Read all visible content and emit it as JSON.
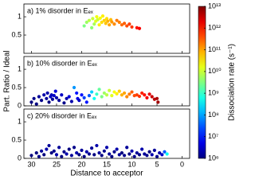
{
  "chart_data": [
    {
      "type": "scatter",
      "title": "a) 1% disorder in Eₑₓ",
      "xlim": [
        31.5,
        -1.5
      ],
      "xticks": [
        30,
        25,
        20,
        15,
        10,
        5,
        0
      ],
      "ylim": [
        0,
        1.35
      ],
      "yticks": [
        0.5,
        1
      ],
      "x": [
        19.5,
        19,
        18.5,
        18,
        17.8,
        17.5,
        17.2,
        17,
        16.8,
        16.5,
        16.3,
        16,
        15.8,
        15.5,
        15.2,
        15,
        14.8,
        14.5,
        14.2,
        14,
        13.5,
        13,
        12.5,
        12,
        11.5,
        11,
        10.5,
        10,
        9,
        8.5
      ],
      "y": [
        0.75,
        0.85,
        0.9,
        0.7,
        0.95,
        0.8,
        0.88,
        1.0,
        0.92,
        0.78,
        0.96,
        0.85,
        1.02,
        0.9,
        0.82,
        0.95,
        0.88,
        0.78,
        0.92,
        0.86,
        0.8,
        0.9,
        0.85,
        0.78,
        0.82,
        0.75,
        0.8,
        0.72,
        0.7,
        0.68
      ],
      "rate": [
        3000000000.0,
        5000000000.0,
        8000000000.0,
        4000000000.0,
        10000000000.0,
        6000000000.0,
        15000000000.0,
        20000000000.0,
        10000000000.0,
        30000000000.0,
        20000000000.0,
        40000000000.0,
        30000000000.0,
        50000000000.0,
        60000000000.0,
        40000000000.0,
        80000000000.0,
        100000000000.0,
        70000000000.0,
        120000000000.0,
        150000000000.0,
        200000000000.0,
        180000000000.0,
        250000000000.0,
        300000000000.0,
        400000000000.0,
        500000000000.0,
        600000000000.0,
        1000000000000.0,
        1500000000000.0
      ]
    },
    {
      "type": "scatter",
      "title": "b) 10% disorder in Eₑₓ",
      "ylabel": "Part. Ratio / Ideal",
      "xlim": [
        31.5,
        -1.5
      ],
      "xticks": [
        30,
        25,
        20,
        15,
        10,
        5,
        0
      ],
      "ylim": [
        0,
        1.35
      ],
      "yticks": [
        0,
        0.5,
        1
      ],
      "x": [
        30,
        29.5,
        29,
        28.5,
        28,
        27.5,
        27,
        26.8,
        26.5,
        26.2,
        26,
        25.8,
        25.5,
        25.2,
        25,
        24.5,
        24,
        23.5,
        23,
        22.5,
        22,
        21.5,
        21,
        20.8,
        20.5,
        20,
        19.5,
        19,
        18.5,
        18,
        17.5,
        17,
        16.5,
        16,
        15.5,
        15,
        14.5,
        14,
        13.5,
        13,
        12.5,
        12,
        11.5,
        11,
        10.5,
        10,
        9.5,
        9,
        8.5,
        8,
        7.5,
        7,
        6.5,
        6,
        5.5,
        5,
        4.8
      ],
      "y": [
        0.1,
        0.2,
        0.05,
        0.25,
        0.15,
        0.3,
        0.2,
        0.35,
        0.1,
        0.25,
        0.3,
        0.18,
        0.28,
        0.4,
        0.22,
        0.15,
        0.3,
        0.08,
        0.2,
        0.25,
        0.12,
        0.5,
        0.35,
        0.2,
        0.15,
        0.3,
        0.22,
        0.1,
        0.28,
        0.38,
        0.2,
        0.32,
        0.45,
        0.25,
        0.35,
        0.3,
        0.42,
        0.28,
        0.38,
        0.33,
        0.4,
        0.3,
        0.35,
        0.25,
        0.32,
        0.38,
        0.28,
        0.3,
        0.26,
        0.35,
        0.3,
        0.22,
        0.32,
        0.25,
        0.18,
        0.2,
        0.1
      ],
      "rate": [
        1000000.0,
        1200000.0,
        1000000.0,
        1500000.0,
        1200000.0,
        2000000.0,
        1500000.0,
        2000000.0,
        1000000.0,
        3000000.0,
        2500000.0,
        1500000.0,
        3000000.0,
        4000000.0,
        2000000.0,
        1500000.0,
        3000000.0,
        1200000.0,
        2000000.0,
        4000000.0,
        2000000.0,
        80000000.0,
        10000000.0,
        5000000.0,
        3000000.0,
        10000000.0,
        20000000.0,
        10000000.0,
        30000000.0,
        200000000.0,
        500000000.0,
        1000000000.0,
        2000000000.0,
        3000000000.0,
        5000000000.0,
        8000000000.0,
        10000000000.0,
        15000000000.0,
        20000000000.0,
        30000000000.0,
        50000000000.0,
        80000000000.0,
        100000000000.0,
        150000000000.0,
        200000000000.0,
        300000000000.0,
        400000000000.0,
        500000000000.0,
        600000000000.0,
        800000000000.0,
        1000000000000.0,
        1500000000000.0,
        2000000000000.0,
        3000000000000.0,
        4000000000000.0,
        5000000000000.0,
        6000000000000.0
      ]
    },
    {
      "type": "scatter",
      "title": "c) 20% disorder in Eₑₓ",
      "xlabel": "Distance to acceptor",
      "xlim": [
        31.5,
        -1.5
      ],
      "xticks": [
        30,
        25,
        20,
        15,
        10,
        5,
        0
      ],
      "ylim": [
        0,
        1.35
      ],
      "yticks": [
        0,
        0.5,
        1
      ],
      "x": [
        30,
        29,
        28.5,
        28,
        27.5,
        27,
        26.5,
        26,
        25.5,
        25,
        24.5,
        24,
        23.5,
        23,
        22.5,
        22,
        21.5,
        21,
        20.5,
        20,
        19.5,
        19,
        18.5,
        18,
        17.5,
        17,
        16.5,
        16,
        15.5,
        15,
        14.5,
        14,
        13.5,
        13,
        12.5,
        12,
        11.5,
        11,
        10.5,
        10,
        9.5,
        9,
        8.5,
        8,
        7.5,
        7,
        6.5,
        6,
        5.5,
        5,
        4.5,
        4,
        3.5,
        3
      ],
      "y": [
        0.08,
        0.15,
        0.05,
        0.2,
        0.1,
        0.25,
        0.35,
        0.15,
        0.2,
        0.1,
        0.3,
        0.05,
        0.18,
        0.12,
        0.25,
        0.08,
        0.3,
        0.15,
        0.1,
        0.22,
        0.05,
        0.18,
        0.12,
        0.28,
        0.1,
        0.35,
        0.15,
        0.08,
        0.2,
        0.3,
        0.12,
        0.05,
        0.18,
        0.25,
        0.1,
        0.15,
        0.08,
        0.3,
        0.12,
        0.2,
        0.05,
        0.15,
        0.1,
        0.25,
        0.12,
        0.08,
        0.18,
        0.1,
        0.22,
        0.05,
        0.15,
        0.1,
        0.18,
        0.12
      ],
      "rate": [
        1000000.0,
        1000000.0,
        1200000.0,
        1500000.0,
        1000000.0,
        2000000.0,
        1500000.0,
        1000000.0,
        1200000.0,
        2000000.0,
        1500000.0,
        1000000.0,
        1200000.0,
        2000000.0,
        1000000.0,
        1500000.0,
        1200000.0,
        2000000.0,
        1000000.0,
        1500000.0,
        1000000.0,
        2000000.0,
        1200000.0,
        1500000.0,
        1000000.0,
        2000000.0,
        1500000.0,
        1000000.0,
        1200000.0,
        2000000.0,
        1500000.0,
        1000000.0,
        1200000.0,
        2000000.0,
        1500000.0,
        1000000.0,
        1200000.0,
        1500000.0,
        1000000.0,
        2000000.0,
        1200000.0,
        1500000.0,
        1000000.0,
        2000000.0,
        1500000.0,
        1200000.0,
        1000000.0,
        2000000.0,
        1500000.0,
        1200000.0,
        2000000.0,
        3000000.0,
        30000000.0,
        500000000.0
      ]
    },
    {
      "type": "colorbar",
      "label": "Dissociation rate (s⁻¹)",
      "colormap": "jet",
      "log": true,
      "lim": [
        1000000.0,
        10000000000000.0
      ],
      "ticks": [
        {
          "value": 1000000.0,
          "label": "10⁶"
        },
        {
          "value": 10000000.0,
          "label": "10⁷"
        },
        {
          "value": 100000000.0,
          "label": "10⁸"
        },
        {
          "value": 1000000000.0,
          "label": "10⁹"
        },
        {
          "value": 10000000000.0,
          "label": "10¹⁰"
        },
        {
          "value": 100000000000.0,
          "label": "10¹¹"
        },
        {
          "value": 1000000000000.0,
          "label": "10¹²"
        },
        {
          "value": 10000000000000.0,
          "label": "10¹³"
        }
      ]
    }
  ]
}
